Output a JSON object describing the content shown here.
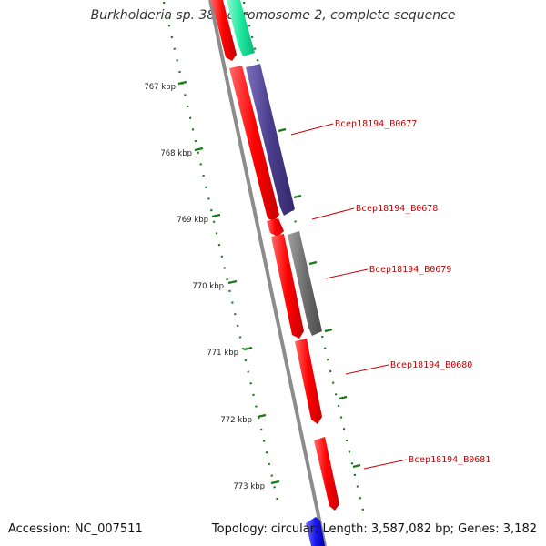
{
  "title": "Burkholderia sp. 383 chromosome 2, complete sequence",
  "footer": {
    "accession": "Accession: NC_007511",
    "summary": "Topology: circular; Length: 3,587,082 bp; Genes: 3,182"
  },
  "colors": {
    "forward_gene": "#ff0000",
    "reverse_gene_purple": "#4a3d8c",
    "reverse_gene_gray": "#6e6e6e",
    "reverse_gene_green": "#1de9a0",
    "reverse_gene_blue": "#1a1aee",
    "tick": "#1a7a1a",
    "backbone": "#8c8c8c",
    "label": "#cc0000"
  },
  "ticks": [
    "767 kbp",
    "768 kbp",
    "769 kbp",
    "770 kbp",
    "771 kbp",
    "772 kbp",
    "773 kbp"
  ],
  "gene_labels": [
    "Bcep18194_B0677",
    "Bcep18194_B0678",
    "Bcep18194_B0679",
    "Bcep18194_B0680",
    "Bcep18194_B0681"
  ]
}
